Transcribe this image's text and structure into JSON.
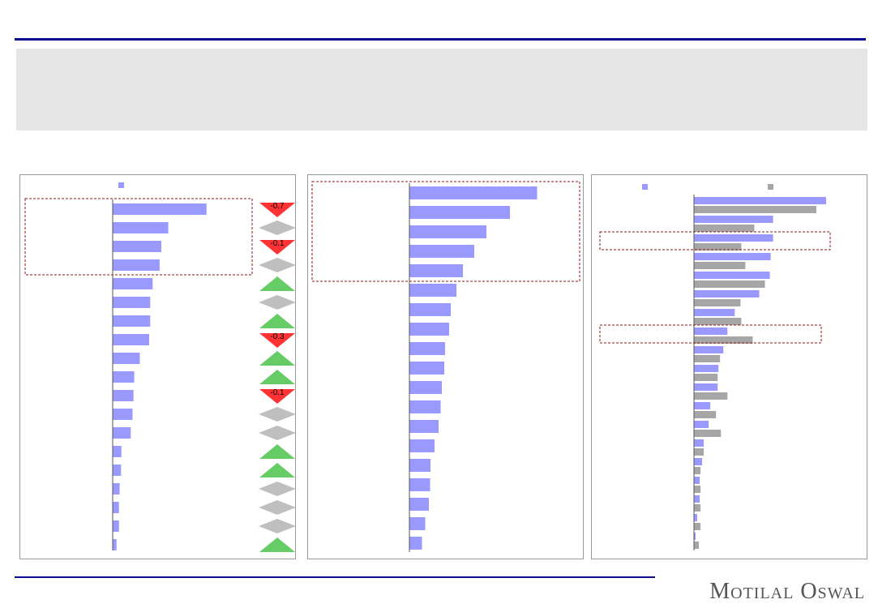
{
  "colors": {
    "header_rule": "#0a0a8c",
    "banner": "#e6e6e6",
    "bar_primary": "#9999ff",
    "bar_secondary": "#a6a6a6",
    "up": "#66cc66",
    "down": "#ff3333",
    "neutral": "#bfbfbf",
    "highlight_box": "#8b1a1a"
  },
  "brand": "Motilal Oswal",
  "chart_data": [
    {
      "type": "bar",
      "orientation": "horizontal",
      "legend": [
        "bar_primary"
      ],
      "values": [
        27,
        16,
        14,
        13.5,
        11.5,
        10.8,
        10.8,
        10.5,
        7.8,
        6.2,
        6.0,
        5.7,
        5.2,
        2.5,
        2.4,
        2.0,
        1.8,
        1.8,
        1.1
      ],
      "xlim": [
        0,
        35
      ],
      "changes": [
        {
          "dir": "down",
          "label": "-0.7"
        },
        {
          "dir": "flat",
          "label": ""
        },
        {
          "dir": "down",
          "label": "-0.1"
        },
        {
          "dir": "flat",
          "label": ""
        },
        {
          "dir": "up",
          "label": ""
        },
        {
          "dir": "flat",
          "label": ""
        },
        {
          "dir": "up",
          "label": ""
        },
        {
          "dir": "down",
          "label": "-0.3"
        },
        {
          "dir": "up",
          "label": ""
        },
        {
          "dir": "up",
          "label": ""
        },
        {
          "dir": "down",
          "label": "-0.1"
        },
        {
          "dir": "flat",
          "label": ""
        },
        {
          "dir": "flat",
          "label": ""
        },
        {
          "dir": "up",
          "label": ""
        },
        {
          "dir": "up",
          "label": ""
        },
        {
          "dir": "flat",
          "label": ""
        },
        {
          "dir": "flat",
          "label": ""
        },
        {
          "dir": "flat",
          "label": ""
        },
        {
          "dir": "up",
          "label": ""
        }
      ],
      "highlight_rows": [
        0,
        3
      ]
    },
    {
      "type": "bar",
      "orientation": "horizontal",
      "values": [
        31.5,
        24.8,
        19,
        16,
        13.2,
        11.6,
        10.2,
        9.8,
        8.8,
        8.6,
        8.0,
        7.7,
        7.2,
        6.2,
        5.2,
        5.1,
        4.8,
        3.9,
        3.1
      ],
      "xlim": [
        0,
        40
      ],
      "highlight_rows": [
        0,
        4
      ]
    },
    {
      "type": "bar",
      "orientation": "horizontal",
      "legend": [
        "bar_primary",
        "bar_secondary"
      ],
      "series": [
        {
          "color": "bar_primary",
          "values": [
            16.2,
            9.7,
            9.7,
            9.4,
            9.3,
            8.0,
            5.0,
            4.1,
            3.6,
            3.0,
            2.9,
            2.0,
            1.8,
            1.2,
            1.0,
            0.7,
            0.7,
            0.4,
            0.2
          ]
        },
        {
          "color": "bar_secondary",
          "values": [
            15.0,
            7.4,
            5.8,
            6.3,
            8.7,
            5.7,
            5.8,
            7.2,
            3.2,
            2.9,
            4.1,
            2.7,
            3.3,
            1.2,
            0.8,
            0.8,
            0.8,
            0.8,
            0.6
          ]
        }
      ],
      "xlim": [
        0,
        20
      ],
      "highlight_groups": [
        [
          2,
          2
        ],
        [
          7,
          7
        ]
      ]
    }
  ]
}
